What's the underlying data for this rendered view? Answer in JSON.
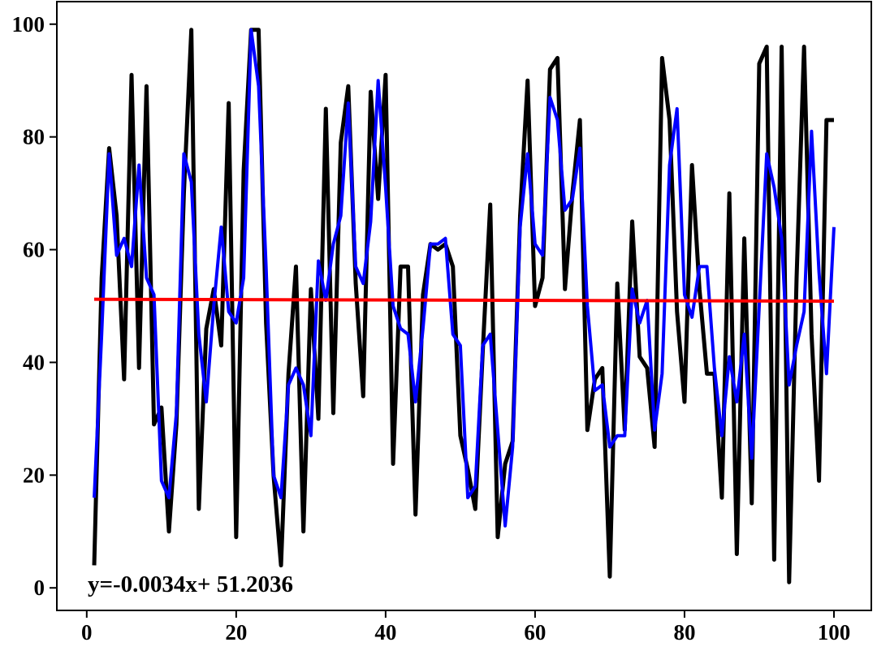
{
  "chart_data": {
    "type": "line",
    "title": "",
    "xlabel": "",
    "ylabel": "",
    "xlim": [
      -4,
      105
    ],
    "ylim": [
      -4,
      104
    ],
    "xticks": [
      0,
      20,
      40,
      60,
      80,
      100
    ],
    "yticks": [
      0,
      20,
      40,
      60,
      80,
      100
    ],
    "x_tick_labels": [
      "0",
      "20",
      "40",
      "60",
      "80",
      "100"
    ],
    "y_tick_labels": [
      "0",
      "20",
      "40",
      "60",
      "80",
      "100"
    ],
    "grid": false,
    "legend": "none",
    "annotation": "y=-0.0034x+ 51.2036",
    "series": [
      {
        "color": "#000000",
        "style": "solid",
        "x": [
          1,
          2,
          3,
          4,
          5,
          6,
          7,
          8,
          9,
          10,
          11,
          12,
          13,
          14,
          15,
          16,
          17,
          18,
          19,
          20,
          21,
          22,
          23,
          24,
          25,
          26,
          27,
          28,
          29,
          30,
          31,
          32,
          33,
          34,
          35,
          36,
          37,
          38,
          39,
          40,
          41,
          42,
          43,
          44,
          45,
          46,
          47,
          48,
          49,
          50,
          51,
          52,
          53,
          54,
          55,
          56,
          57,
          58,
          59,
          60,
          61,
          62,
          63,
          64,
          65,
          66,
          67,
          68,
          69,
          70,
          71,
          72,
          73,
          74,
          75,
          76,
          77,
          78,
          79,
          80,
          81,
          82,
          83,
          84,
          85,
          86,
          87,
          88,
          89,
          90,
          91,
          92,
          93,
          94,
          95,
          96,
          97,
          98,
          99,
          100
        ],
        "values": [
          4,
          55,
          78,
          66,
          37,
          91,
          39,
          89,
          29,
          32,
          10,
          29,
          70,
          99,
          14,
          46,
          53,
          43,
          86,
          9,
          74,
          99,
          99,
          47,
          20,
          4,
          38,
          57,
          10,
          53,
          30,
          85,
          31,
          79,
          89,
          54,
          34,
          88,
          69,
          91,
          22,
          57,
          57,
          13,
          52,
          61,
          60,
          61,
          57,
          27,
          21,
          14,
          42,
          68,
          9,
          22,
          26,
          66,
          90,
          50,
          55,
          92,
          94,
          53,
          70,
          83,
          28,
          37,
          39,
          2,
          54,
          28,
          65,
          41,
          39,
          25,
          94,
          83,
          49,
          33,
          75,
          53,
          38,
          38,
          16,
          70,
          6,
          62,
          15,
          93,
          96,
          5,
          96,
          1,
          55,
          96,
          45,
          19,
          83,
          83
        ]
      },
      {
        "color": "#0000ff",
        "style": "solid",
        "x": [
          1,
          2,
          3,
          4,
          5,
          6,
          7,
          8,
          9,
          10,
          11,
          12,
          13,
          14,
          15,
          16,
          17,
          18,
          19,
          20,
          21,
          22,
          23,
          24,
          25,
          26,
          27,
          28,
          29,
          30,
          31,
          32,
          33,
          34,
          35,
          36,
          37,
          38,
          39,
          40,
          41,
          42,
          43,
          44,
          45,
          46,
          47,
          48,
          49,
          50,
          51,
          52,
          53,
          54,
          55,
          56,
          57,
          58,
          59,
          60,
          61,
          62,
          63,
          64,
          65,
          66,
          67,
          68,
          69,
          70,
          71,
          72,
          73,
          74,
          75,
          76,
          77,
          78,
          79,
          80,
          81,
          82,
          83,
          84,
          85,
          86,
          87,
          88,
          89,
          90,
          91,
          92,
          93,
          94,
          95,
          96,
          97,
          98,
          99,
          100
        ],
        "values": [
          16,
          45,
          77,
          59,
          62,
          57,
          75,
          55,
          52,
          19,
          16,
          31,
          77,
          72,
          45,
          33,
          50,
          64,
          49,
          47,
          55,
          99,
          89,
          57,
          20,
          16,
          36,
          39,
          36,
          27,
          58,
          51,
          61,
          66,
          86,
          57,
          54,
          65,
          90,
          71,
          50,
          46,
          45,
          33,
          46,
          61,
          61,
          62,
          45,
          43,
          16,
          18,
          43,
          45,
          28,
          11,
          25,
          64,
          77,
          61,
          59,
          87,
          83,
          67,
          69,
          78,
          50,
          35,
          36,
          25,
          27,
          27,
          53,
          47,
          51,
          28,
          38,
          75,
          85,
          52,
          48,
          57,
          57,
          39,
          27,
          41,
          33,
          45,
          23,
          50,
          77,
          71,
          62,
          36,
          43,
          49,
          81,
          56,
          38,
          64
        ]
      },
      {
        "color": "#ff0000",
        "style": "solid",
        "x": [
          1,
          100
        ],
        "values": [
          51.2002,
          50.8636
        ]
      }
    ]
  }
}
